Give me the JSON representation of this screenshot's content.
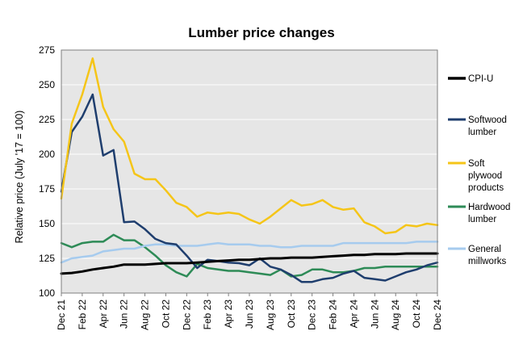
{
  "chart_data": {
    "type": "line",
    "title": "Lumber price changes",
    "xlabel": "",
    "ylabel": "Relative price (July '17 = 100)",
    "ylim": [
      100,
      275
    ],
    "yticks": [
      100,
      125,
      150,
      175,
      200,
      225,
      250,
      275
    ],
    "grid": true,
    "legend_position": "right",
    "x_tick_labels": [
      "Dec 21",
      "Feb 22",
      "Apr 22",
      "Jun 22",
      "Aug 22",
      "Oct 22",
      "Dec 22",
      "Feb 23",
      "Apr 23",
      "Jun 23",
      "Aug 23",
      "Oct 23",
      "Dec 23",
      "Feb 24",
      "Apr 24",
      "Jun 24",
      "Aug 24",
      "Oct 24",
      "Dec 24"
    ],
    "series": [
      {
        "name": "CPI-U",
        "color": "#000000",
        "values": [
          114,
          114.5,
          115.5,
          117,
          118,
          119,
          120.5,
          120.5,
          120.5,
          121,
          121.5,
          121.5,
          121.5,
          122,
          122.5,
          123,
          123.5,
          124,
          124,
          124.5,
          125,
          125,
          125.5,
          125.5,
          125.5,
          126,
          126.5,
          127,
          127.5,
          127.5,
          128,
          128,
          128,
          128.5,
          128.5,
          128.5,
          128.5
        ]
      },
      {
        "name": "Softwood lumber",
        "color": "#1f3e6e",
        "values": [
          173,
          216,
          227,
          243,
          199,
          203,
          151,
          151.5,
          146,
          139,
          136,
          135,
          127,
          118,
          124,
          123,
          122,
          121.5,
          120,
          125,
          119,
          117,
          113,
          108,
          108,
          110,
          111,
          114,
          116,
          111,
          110,
          109,
          112,
          115,
          117,
          120,
          122
        ]
      },
      {
        "name": "Soft plywood products",
        "color": "#f5c518",
        "values": [
          168,
          222,
          243,
          269,
          234,
          218,
          209,
          186,
          182,
          182,
          174,
          165,
          162,
          155,
          158,
          157,
          158,
          157,
          153,
          150,
          155,
          161,
          167,
          163,
          164,
          167,
          162,
          160,
          161,
          151,
          148,
          143,
          144,
          149,
          148,
          150,
          149
        ]
      },
      {
        "name": "Hardwood lumber",
        "color": "#2e8b57",
        "values": [
          136,
          133,
          136,
          137,
          137,
          142,
          138,
          138,
          133,
          127,
          120,
          115,
          112,
          121,
          118,
          117,
          116,
          116,
          115,
          114,
          113,
          117,
          112,
          113,
          117,
          117,
          115,
          115,
          116,
          118,
          118,
          119,
          119,
          119,
          119,
          119,
          119
        ]
      },
      {
        "name": "General millworks",
        "color": "#a6cbee",
        "values": [
          122,
          125,
          126,
          127,
          130,
          131,
          132,
          132,
          134,
          135,
          135,
          134,
          134,
          134,
          135,
          136,
          135,
          135,
          135,
          134,
          134,
          133,
          133,
          134,
          134,
          134,
          134,
          136,
          136,
          136,
          136,
          136,
          136,
          136,
          137,
          137,
          137
        ]
      }
    ],
    "legend": [
      {
        "label_lines": [
          "CPI-U"
        ],
        "color": "#000000"
      },
      {
        "label_lines": [
          "Softwood",
          "lumber"
        ],
        "color": "#1f3e6e"
      },
      {
        "label_lines": [
          "Soft",
          "plywood",
          "products"
        ],
        "color": "#f5c518"
      },
      {
        "label_lines": [
          "Hardwood",
          "lumber"
        ],
        "color": "#2e8b57"
      },
      {
        "label_lines": [
          "General",
          "millworks"
        ],
        "color": "#a6cbee"
      }
    ],
    "plot_background": "#e6e6e6",
    "grid_color": "#ffffff"
  }
}
